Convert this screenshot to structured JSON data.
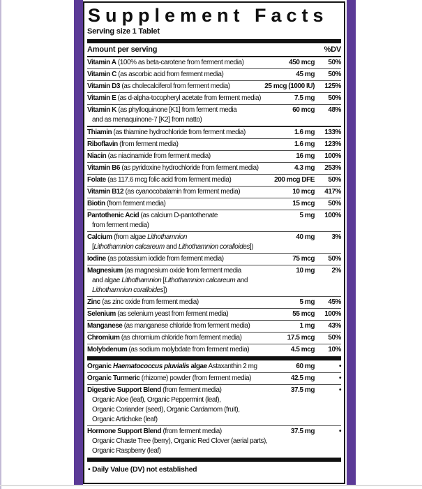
{
  "label": {
    "title": "Supplement Facts",
    "serving_size": "Serving size 1 Tablet",
    "amount_header": "Amount per serving",
    "dv_header": "%DV",
    "footnote": "• Daily Value (DV) not established",
    "colors": {
      "stripe_purple": "#5b3a97",
      "rule_black": "#111111",
      "hairline_gray": "#4d4d4d"
    }
  },
  "rows": [
    {
      "kind": "row",
      "id": "vitamin-a",
      "segs": [
        [
          "Vitamin A",
          "b"
        ],
        [
          " (100% as beta-carotene from ferment media)",
          ""
        ]
      ],
      "amount": "450 mcg",
      "dv": "50%"
    },
    {
      "kind": "row",
      "id": "vitamin-c",
      "segs": [
        [
          "Vitamin C",
          "b"
        ],
        [
          " (as ascorbic acid from ferment media)",
          ""
        ]
      ],
      "amount": "45 mg",
      "dv": "50%"
    },
    {
      "kind": "row",
      "id": "vitamin-d3",
      "segs": [
        [
          "Vitamin D3",
          "b"
        ],
        [
          " (as cholecalciferol from ferment media)",
          ""
        ]
      ],
      "amount": "25 mcg (1000 IU)",
      "dv": "125%"
    },
    {
      "kind": "row",
      "id": "vitamin-e",
      "segs": [
        [
          "Vitamin E",
          "b"
        ],
        [
          " (as d-alpha-tocopheryl acetate from ferment media)",
          ""
        ]
      ],
      "amount": "7.5 mg",
      "dv": "50%"
    },
    {
      "kind": "row",
      "id": "vitamin-k",
      "segs": [
        [
          "Vitamin K",
          "b"
        ],
        [
          " (as phylloquinone [K1] from ferment media",
          ""
        ]
      ],
      "cont": [
        [
          [
            "and as menaquinone-7 [K2] from natto)",
            ""
          ]
        ]
      ],
      "amount": "60 mcg",
      "dv": "48%"
    },
    {
      "kind": "row",
      "id": "thiamin",
      "sep": "med",
      "segs": [
        [
          "Thiamin",
          "b"
        ],
        [
          " (as thiamine hydrochloride from ferment media)",
          ""
        ]
      ],
      "amount": "1.6 mg",
      "dv": "133%"
    },
    {
      "kind": "row",
      "id": "riboflavin",
      "segs": [
        [
          "Riboflavin",
          "b"
        ],
        [
          " (from ferment media)",
          ""
        ]
      ],
      "amount": "1.6 mg",
      "dv": "123%"
    },
    {
      "kind": "row",
      "id": "niacin",
      "segs": [
        [
          "Niacin",
          "b"
        ],
        [
          " (as niacinamide from ferment media)",
          ""
        ]
      ],
      "amount": "16 mg",
      "dv": "100%"
    },
    {
      "kind": "row",
      "id": "vitamin-b6",
      "segs": [
        [
          "Vitamin B6",
          "b"
        ],
        [
          " (as pyridoxine hydrochloride from ferment media)",
          ""
        ]
      ],
      "amount": "4.3 mg",
      "dv": "253%"
    },
    {
      "kind": "row",
      "id": "folate",
      "segs": [
        [
          "Folate",
          "b"
        ],
        [
          " (as 117.6 mcg folic acid from ferment media)",
          ""
        ]
      ],
      "amount": "200 mcg DFE",
      "dv": "50%"
    },
    {
      "kind": "row",
      "id": "vitamin-b12",
      "segs": [
        [
          "Vitamin B12",
          "b"
        ],
        [
          " (as cyanocobalamin from ferment media)",
          ""
        ]
      ],
      "amount": "10 mcg",
      "dv": "417%"
    },
    {
      "kind": "row",
      "id": "biotin",
      "segs": [
        [
          "Biotin",
          "b"
        ],
        [
          " (from ferment media)",
          ""
        ]
      ],
      "amount": "15 mcg",
      "dv": "50%"
    },
    {
      "kind": "row",
      "id": "pantothenic-acid",
      "segs": [
        [
          "Pantothenic Acid",
          "b"
        ],
        [
          " (as calcium D-pantothenate",
          ""
        ]
      ],
      "cont": [
        [
          [
            "from ferment media)",
            ""
          ]
        ]
      ],
      "amount": "5 mg",
      "dv": "100%"
    },
    {
      "kind": "row",
      "id": "calcium",
      "segs": [
        [
          "Calcium",
          "b"
        ],
        [
          " (from algae ",
          ""
        ],
        [
          "Lithothamnion",
          "i"
        ]
      ],
      "cont": [
        [
          [
            "[",
            ""
          ],
          [
            "Lithothamnion calcareum",
            "i"
          ],
          [
            " and ",
            ""
          ],
          [
            "Lithothamnion coralloides",
            "i"
          ],
          [
            "])",
            ""
          ]
        ]
      ],
      "amount": "40 mg",
      "dv": "3%"
    },
    {
      "kind": "row",
      "id": "iodine",
      "segs": [
        [
          "Iodine",
          "b"
        ],
        [
          " (as potassium iodide from ferment media)",
          ""
        ]
      ],
      "amount": "75 mcg",
      "dv": "50%"
    },
    {
      "kind": "row",
      "id": "magnesium",
      "segs": [
        [
          "Magnesium",
          "b"
        ],
        [
          " (as magnesium oxide from ferment media",
          ""
        ]
      ],
      "cont": [
        [
          [
            "and algae ",
            ""
          ],
          [
            "Lithothamnion",
            "i"
          ],
          [
            " [",
            ""
          ],
          [
            "Lithothamnion calcareum",
            "i"
          ],
          [
            " and",
            ""
          ]
        ],
        [
          [
            "Lithothamnion coralloides",
            "i"
          ],
          [
            "])",
            ""
          ]
        ]
      ],
      "amount": "10 mg",
      "dv": "2%"
    },
    {
      "kind": "row",
      "id": "zinc",
      "segs": [
        [
          "Zinc",
          "b"
        ],
        [
          " (as zinc oxide from ferment media)",
          ""
        ]
      ],
      "amount": "5 mg",
      "dv": "45%"
    },
    {
      "kind": "row",
      "id": "selenium",
      "segs": [
        [
          "Selenium",
          "b"
        ],
        [
          " (as selenium yeast from ferment media)",
          ""
        ]
      ],
      "amount": "55 mcg",
      "dv": "100%"
    },
    {
      "kind": "row",
      "id": "manganese",
      "segs": [
        [
          "Manganese",
          "b"
        ],
        [
          " (as manganese chloride from ferment media)",
          ""
        ]
      ],
      "amount": "1 mg",
      "dv": "43%"
    },
    {
      "kind": "row",
      "id": "chromium",
      "segs": [
        [
          "Chromium",
          "b"
        ],
        [
          " (as chromium chloride from ferment media)",
          ""
        ]
      ],
      "amount": "17.5 mcg",
      "dv": "50%"
    },
    {
      "kind": "row",
      "id": "molybdenum",
      "segs": [
        [
          "Molybdenum",
          "b"
        ],
        [
          " (as sodium molybdate from ferment media)",
          ""
        ]
      ],
      "amount": "4.5 mcg",
      "dv": "10%"
    },
    {
      "kind": "bar"
    },
    {
      "kind": "row",
      "id": "astaxanthin",
      "segs": [
        [
          "Organic ",
          "b"
        ],
        [
          "Haematococcus pluvialis",
          "bi"
        ],
        [
          " algae",
          "b"
        ],
        [
          " Astaxanthin 2 mg",
          ""
        ]
      ],
      "amount": "60 mg",
      "dv": "•"
    },
    {
      "kind": "row",
      "id": "turmeric",
      "segs": [
        [
          "Organic Turmeric",
          "b"
        ],
        [
          " (rhizome) powder (from ferment media)",
          ""
        ]
      ],
      "amount": "42.5 mg",
      "dv": "•"
    },
    {
      "kind": "row",
      "id": "digestive-support-blend",
      "segs": [
        [
          "Digestive Support Blend",
          "b"
        ],
        [
          " (from ferment media)",
          ""
        ]
      ],
      "cont": [
        [
          [
            "Organic Aloe (leaf), Organic Peppermint (leaf),",
            ""
          ]
        ],
        [
          [
            "Organic Coriander (seed), Organic Cardamom (fruit),",
            ""
          ]
        ],
        [
          [
            "Organic Artichoke (leaf)",
            ""
          ]
        ]
      ],
      "amount": "37.5 mg",
      "dv": "•"
    },
    {
      "kind": "row",
      "id": "hormone-support-blend",
      "segs": [
        [
          "Hormone Support Blend",
          "b"
        ],
        [
          " (from ferment media)",
          ""
        ]
      ],
      "cont": [
        [
          [
            "Organic Chaste Tree (berry), Organic Red Clover (aerial parts),",
            ""
          ]
        ],
        [
          [
            "Organic Raspberry (leaf)",
            ""
          ]
        ]
      ],
      "amount": "37.5 mg",
      "dv": "•"
    },
    {
      "kind": "bar"
    }
  ]
}
